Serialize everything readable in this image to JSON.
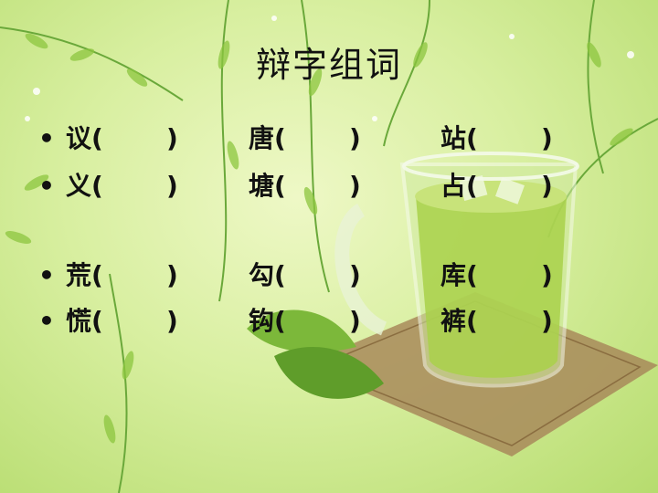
{
  "slide": {
    "title": "辩字组词",
    "bullet_symbol": "•",
    "paren_open": "(",
    "paren_close": ")",
    "columns": [
      {
        "chars": [
          "议",
          "义",
          "荒",
          "慌"
        ]
      },
      {
        "chars": [
          "唐",
          "塘",
          "勾",
          "钩"
        ]
      },
      {
        "chars": [
          "站",
          "占",
          "库",
          "裤"
        ]
      }
    ]
  },
  "colors": {
    "background_light": "#eef8c6",
    "background_dark": "#b6dc6e",
    "text": "#111111",
    "leaf": "#8cc63f",
    "mat": "#a88a5a"
  },
  "icons": [
    "willow-branch-icon",
    "tea-cup-icon",
    "leaf-icon",
    "bamboo-mat-icon"
  ]
}
